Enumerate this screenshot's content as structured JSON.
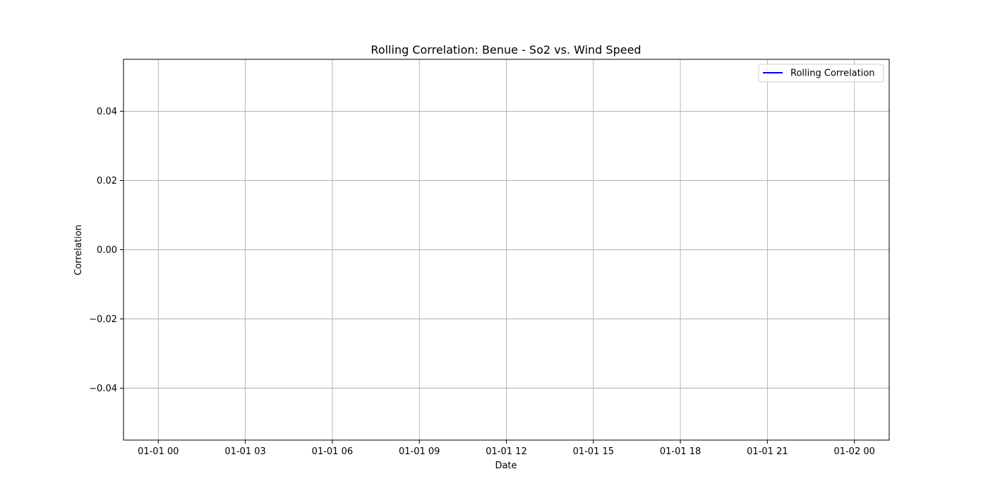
{
  "chart_data": {
    "type": "line",
    "title": "Rolling Correlation: Benue - So2 vs. Wind Speed",
    "xlabel": "Date",
    "ylabel": "Correlation",
    "x_ticks": [
      "01-01 00",
      "01-01 03",
      "01-01 06",
      "01-01 09",
      "01-01 12",
      "01-01 15",
      "01-01 18",
      "01-01 21",
      "01-02 00"
    ],
    "xlim_hours": [
      -1.2,
      25.2
    ],
    "y_ticks": [
      "0.04",
      "0.02",
      "0.00",
      "−0.02",
      "−0.04"
    ],
    "y_tick_values": [
      0.04,
      0.02,
      0.0,
      -0.02,
      -0.04
    ],
    "ylim": [
      -0.055,
      0.055
    ],
    "grid": true,
    "legend": {
      "position": "top-right"
    },
    "series": [
      {
        "name": "Rolling Correlation",
        "color": "#0000ff",
        "x": [],
        "y": []
      }
    ]
  }
}
